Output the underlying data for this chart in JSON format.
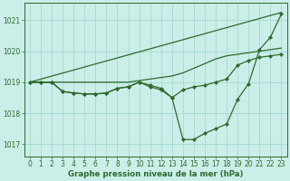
{
  "title": "Graphe pression niveau de la mer (hPa)",
  "bg_color": "#cbeee8",
  "grid_color": "#a8ddd4",
  "line_color": "#2d6a2d",
  "xlim": [
    -0.5,
    23.5
  ],
  "ylim": [
    1016.6,
    1021.55
  ],
  "yticks": [
    1017,
    1018,
    1019,
    1020,
    1021
  ],
  "xticks": [
    0,
    1,
    2,
    3,
    4,
    5,
    6,
    7,
    8,
    9,
    10,
    11,
    12,
    13,
    14,
    15,
    16,
    17,
    18,
    19,
    20,
    21,
    22,
    23
  ],
  "series": [
    {
      "x": [
        0,
        23
      ],
      "y": [
        1019.0,
        1021.25
      ],
      "markers": false,
      "lw": 0.9
    },
    {
      "x": [
        0,
        1,
        2,
        3,
        4,
        5,
        6,
        7,
        8,
        9,
        10,
        11,
        12,
        13,
        14,
        15,
        16,
        17,
        18,
        19,
        20,
        21,
        22,
        23
      ],
      "y": [
        1019.0,
        1019.0,
        1019.0,
        1019.0,
        1019.0,
        1019.0,
        1019.0,
        1019.0,
        1019.0,
        1019.0,
        1019.05,
        1019.1,
        1019.15,
        1019.2,
        1019.3,
        1019.45,
        1019.6,
        1019.75,
        1019.85,
        1019.9,
        1019.95,
        1020.0,
        1020.05,
        1020.1
      ],
      "markers": false,
      "lw": 0.9
    },
    {
      "x": [
        0,
        1,
        2,
        3,
        4,
        5,
        6,
        7,
        8,
        9,
        10,
        11,
        12,
        13,
        14,
        15,
        16,
        17,
        18,
        19,
        20,
        21,
        22,
        23
      ],
      "y": [
        1019.0,
        1019.0,
        1019.0,
        1018.7,
        1018.65,
        1018.62,
        1018.62,
        1018.65,
        1018.8,
        1018.85,
        1019.0,
        1018.85,
        1018.75,
        1018.5,
        1018.75,
        1018.85,
        1018.9,
        1019.0,
        1019.1,
        1019.55,
        1019.7,
        1019.8,
        1019.85,
        1019.9
      ],
      "markers": true,
      "lw": 0.9
    },
    {
      "x": [
        0,
        1,
        2,
        3,
        4,
        5,
        6,
        7,
        8,
        9,
        10,
        11,
        12,
        13,
        14,
        15,
        16,
        17,
        18,
        19,
        20,
        21,
        22,
        23
      ],
      "y": [
        1019.0,
        1019.0,
        1019.0,
        1018.7,
        1018.65,
        1018.62,
        1018.62,
        1018.65,
        1018.8,
        1018.85,
        1019.0,
        1018.9,
        1018.8,
        1018.5,
        1017.15,
        1017.15,
        1017.35,
        1017.5,
        1017.65,
        1018.45,
        1018.95,
        1020.05,
        1020.45,
        1021.2
      ],
      "markers": true,
      "lw": 0.9
    }
  ],
  "tick_fontsize": 5.5,
  "xlabel_fontsize": 6.2
}
